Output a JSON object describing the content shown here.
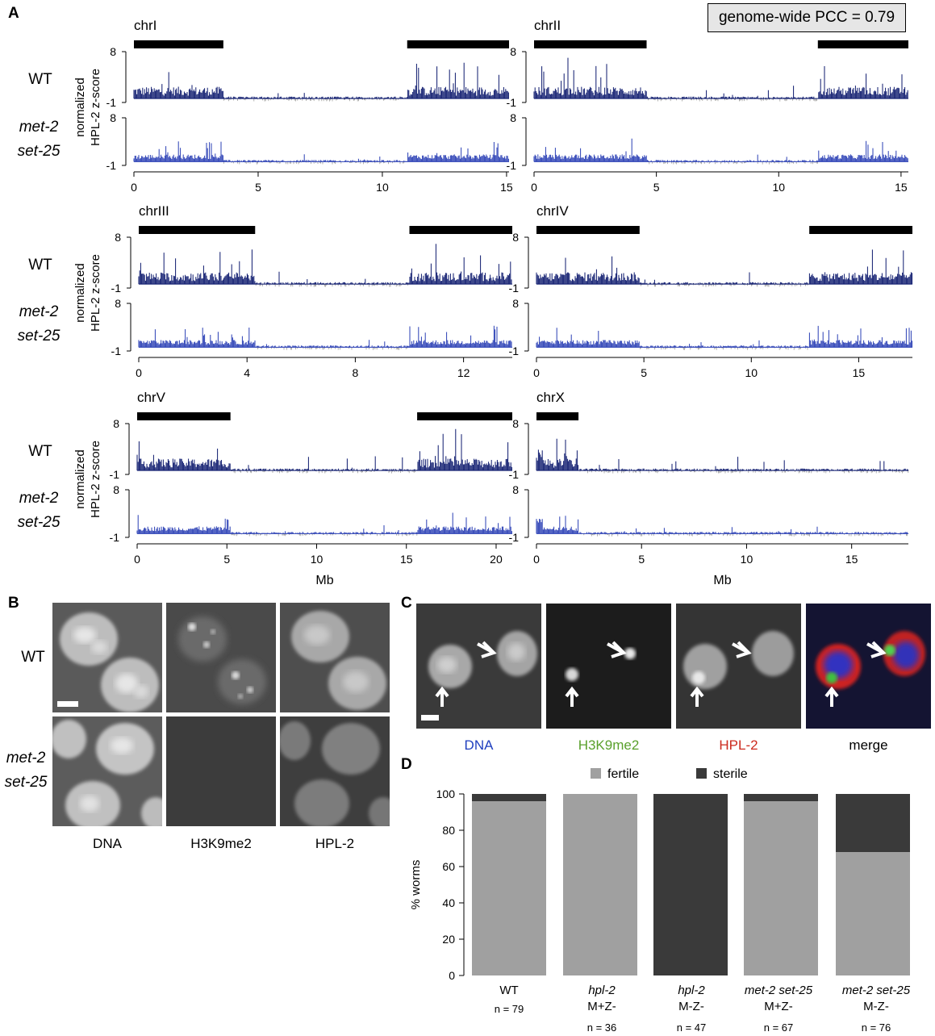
{
  "panels": {
    "a": "A",
    "b": "B",
    "c": "C",
    "d": "D"
  },
  "pcc_label": "genome-wide PCC = 0.79",
  "row_labels": {
    "wt": "WT",
    "mutant_line1": "met-2",
    "mutant_line2": "set-25"
  },
  "ylabel_line1": "normalized",
  "ylabel_line2": "HPL-2 z-score",
  "xlabel": "Mb",
  "ytick_top": "8",
  "ytick_bottom": "-1",
  "colors": {
    "wt": "#0d1a6e",
    "mutant": "#2a3fb5",
    "negative": "#9a9a9a"
  },
  "chromosomes": [
    {
      "name": "chrI",
      "length": 15.1,
      "ticks": [
        0,
        5,
        10,
        15
      ],
      "arms": [
        [
          0,
          3.6
        ],
        [
          11.0,
          15.1
        ]
      ]
    },
    {
      "name": "chrII",
      "length": 15.3,
      "ticks": [
        0,
        5,
        10,
        15
      ],
      "arms": [
        [
          0,
          4.6
        ],
        [
          11.6,
          15.3
        ]
      ]
    },
    {
      "name": "chrIII",
      "length": 13.8,
      "ticks": [
        0,
        4,
        8,
        12
      ],
      "arms": [
        [
          0,
          4.3
        ],
        [
          10.0,
          13.8
        ]
      ]
    },
    {
      "name": "chrIV",
      "length": 17.5,
      "ticks": [
        0,
        5,
        10,
        15
      ],
      "arms": [
        [
          0,
          4.8
        ],
        [
          12.7,
          17.5
        ]
      ]
    },
    {
      "name": "chrV",
      "length": 20.9,
      "ticks": [
        0,
        5,
        10,
        15,
        20
      ],
      "arms": [
        [
          0,
          5.2
        ],
        [
          15.6,
          20.9
        ]
      ]
    },
    {
      "name": "chrX",
      "length": 17.7,
      "ticks": [
        0,
        5,
        10,
        15
      ],
      "arms": [
        [
          0,
          2.0
        ]
      ]
    }
  ],
  "panel_b": {
    "row_wt": "WT",
    "row_mut1": "met-2",
    "row_mut2": "set-25",
    "captions": [
      "DNA",
      "H3K9me2",
      "HPL-2"
    ]
  },
  "panel_c": {
    "captions": [
      "DNA",
      "H3K9me2",
      "HPL-2",
      "merge"
    ],
    "caption_colors": [
      "#1f3fbf",
      "#5aa02c",
      "#cc2a1e",
      "#000000"
    ]
  },
  "chart_data": {
    "type": "bar",
    "stacked": true,
    "ylabel": "% worms",
    "ylim": [
      0,
      100
    ],
    "yticks": [
      0,
      20,
      40,
      60,
      80,
      100
    ],
    "legend": "top",
    "categories": [
      {
        "line1": "WT",
        "line2": "",
        "n": "n = 79"
      },
      {
        "line1": "hpl-2",
        "line2": "M+Z-",
        "n": "n = 36"
      },
      {
        "line1": "hpl-2",
        "line2": "M-Z-",
        "n": "n = 47"
      },
      {
        "line1": "met-2 set-25",
        "line2": "M+Z-",
        "n": "n = 67"
      },
      {
        "line1": "met-2 set-25",
        "line2": "M-Z-",
        "n": "n = 76"
      }
    ],
    "series": [
      {
        "name": "fertile",
        "color": "#a0a0a0",
        "values": [
          96,
          100,
          0,
          96,
          68
        ]
      },
      {
        "name": "sterile",
        "color": "#3a3a3a",
        "values": [
          4,
          0,
          100,
          4,
          32
        ]
      }
    ]
  }
}
